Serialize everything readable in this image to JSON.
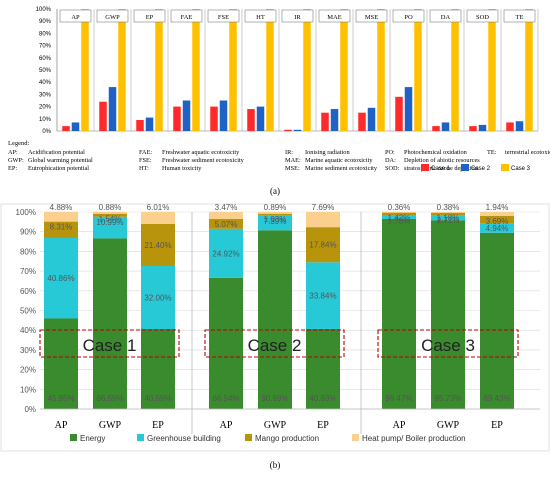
{
  "chart_data": [
    {
      "type": "bar",
      "panel_label": "(a)",
      "categories": [
        "AP",
        "GWP",
        "EP",
        "FAE",
        "FSE",
        "HT",
        "IR",
        "MAE",
        "MSE",
        "PO",
        "DA",
        "SOD",
        "TE"
      ],
      "yticks": [
        "0%",
        "10%",
        "20%",
        "30%",
        "40%",
        "50%",
        "60%",
        "70%",
        "80%",
        "90%",
        "100%"
      ],
      "ylim": [
        0,
        100
      ],
      "series": [
        {
          "name": "Case 1",
          "color": "#ff2a2a",
          "values": [
            4,
            24,
            9,
            20,
            20,
            18,
            1,
            15,
            15,
            28,
            4,
            4,
            7
          ]
        },
        {
          "name": "Case 2",
          "color": "#1f62c6",
          "values": [
            7,
            36,
            11,
            25,
            25,
            20,
            1,
            18,
            19,
            36,
            7,
            5,
            8
          ]
        },
        {
          "name": "Case 3",
          "color": "#ffc000",
          "values": [
            100,
            100,
            100,
            100,
            100,
            100,
            100,
            100,
            100,
            100,
            100,
            100,
            100
          ]
        }
      ],
      "legend_title": "Legend:",
      "legend_lines": [
        [
          "AP:",
          "Acidification potential",
          "FAE:",
          "Freshwater aquatic ecotoxicity",
          "IR:",
          "Ionising radiation",
          "PO:",
          "Photochemical oxidation",
          "TE:",
          "terrestrial ecotoxicity"
        ],
        [
          "GWP:",
          "Global warming potential",
          "FSE:",
          "Freshwater sediment ecotoxicity",
          "MAE:",
          "Marine aquatic ecotoxicity",
          "DA:",
          "Depletion of abiotic resources"
        ],
        [
          "EP:",
          "Eutrophication potential",
          "HT:",
          "Human toxicity",
          "MSE:",
          "Marine sediment ecotoxicity",
          "SOD:",
          "stratospheric ozone depletion"
        ]
      ]
    },
    {
      "type": "bar",
      "stacked": true,
      "panel_label": "(b)",
      "yticks": [
        "0%",
        "10%",
        "20%",
        "30%",
        "40%",
        "50%",
        "60%",
        "70%",
        "80%",
        "90%",
        "100%"
      ],
      "ylim": [
        0,
        100
      ],
      "groups": [
        {
          "label": "Case 1",
          "categories": [
            "AP",
            "GWP",
            "EP"
          ]
        },
        {
          "label": "Case 2",
          "categories": [
            "AP",
            "GWP",
            "EP"
          ]
        },
        {
          "label": "Case 3",
          "categories": [
            "AP",
            "GWP",
            "EP"
          ]
        }
      ],
      "series": [
        {
          "name": "Energy",
          "color": "#3a8a2e",
          "values": [
            45.95,
            86.59,
            40.59,
            66.54,
            90.69,
            40.63,
            96.47,
            95.73,
            89.43
          ],
          "labels": [
            "45.95%",
            "86.59%",
            "40.59%",
            "66.54%",
            "90.69%",
            "40.63%",
            "96.47%",
            "95.73%",
            "89.43%"
          ]
        },
        {
          "name": "Greenhouse building",
          "color": "#28c9d6",
          "values": [
            40.86,
            10.99,
            32.0,
            24.92,
            7.39,
            33.84,
            1.78,
            2.71,
            4.94
          ],
          "labels": [
            "40.86%",
            "10.99%",
            "32.00%",
            "24.92%",
            "7.39%",
            "33.84%",
            "1.78%",
            "2.71%",
            "4.94%"
          ]
        },
        {
          "name": "Mango production",
          "color": "#b8940c",
          "values": [
            8.31,
            1.54,
            21.4,
            5.07,
            1.03,
            17.84,
            1.42,
            1.18,
            3.69
          ],
          "labels": [
            "8.31%",
            "1.54%",
            "21.40%",
            "5.07%",
            "1.03%",
            "17.84%",
            "1.42%",
            "1.18%",
            "3.69%"
          ]
        },
        {
          "name": "Heat pump/ Boiler production",
          "color": "#fbcf8e",
          "values": [
            4.88,
            0.88,
            6.01,
            3.47,
            0.89,
            7.69,
            0.36,
            0.38,
            1.94
          ],
          "labels": [
            "4.88%",
            "0.88%",
            "6.01%",
            "3.47%",
            "0.89%",
            "7.69%",
            "0.36%",
            "0.38%",
            "1.94%"
          ]
        }
      ]
    }
  ]
}
